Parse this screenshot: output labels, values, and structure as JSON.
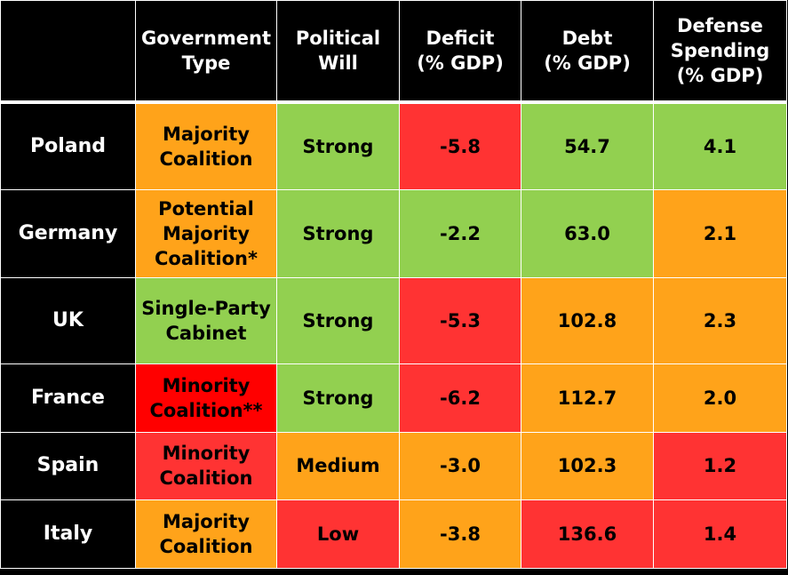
{
  "colors": {
    "green": "#92d050",
    "orange": "#ffa31a",
    "red": "#ff3333",
    "deep_red": "#ff0000",
    "header_bg": "#000000",
    "header_text": "#ffffff"
  },
  "headers": [
    "",
    "Government\nType",
    "Political\nWill",
    "Deficit\n(% GDP)",
    "Debt\n(% GDP)",
    "Defense\nSpending\n(% GDP)"
  ],
  "rows": [
    {
      "country": "Poland",
      "cells": [
        {
          "text": "Majority\nCoalition",
          "color": "orange"
        },
        {
          "text": "Strong",
          "color": "green"
        },
        {
          "text": "-5.8",
          "color": "red"
        },
        {
          "text": "54.7",
          "color": "green"
        },
        {
          "text": "4.1",
          "color": "green"
        }
      ]
    },
    {
      "country": "Germany",
      "cells": [
        {
          "text": "Potential\nMajority\nCoalition*",
          "color": "orange"
        },
        {
          "text": "Strong",
          "color": "green"
        },
        {
          "text": "-2.2",
          "color": "green"
        },
        {
          "text": "63.0",
          "color": "green"
        },
        {
          "text": "2.1",
          "color": "orange"
        }
      ]
    },
    {
      "country": "UK",
      "cells": [
        {
          "text": "Single-Party\nCabinet",
          "color": "green"
        },
        {
          "text": "Strong",
          "color": "green"
        },
        {
          "text": "-5.3",
          "color": "red"
        },
        {
          "text": "102.8",
          "color": "orange"
        },
        {
          "text": "2.3",
          "color": "orange"
        }
      ]
    },
    {
      "country": "France",
      "cells": [
        {
          "text": "Minority\nCoalition**",
          "color": "deep_red"
        },
        {
          "text": "Strong",
          "color": "green"
        },
        {
          "text": "-6.2",
          "color": "red"
        },
        {
          "text": "112.7",
          "color": "orange"
        },
        {
          "text": "2.0",
          "color": "orange"
        }
      ]
    },
    {
      "country": "Spain",
      "cells": [
        {
          "text": "Minority\nCoalition",
          "color": "red"
        },
        {
          "text": "Medium",
          "color": "orange"
        },
        {
          "text": "-3.0",
          "color": "orange"
        },
        {
          "text": "102.3",
          "color": "orange"
        },
        {
          "text": "1.2",
          "color": "red"
        }
      ]
    },
    {
      "country": "Italy",
      "cells": [
        {
          "text": "Majority\nCoalition",
          "color": "orange"
        },
        {
          "text": "Low",
          "color": "red"
        },
        {
          "text": "-3.8",
          "color": "orange"
        },
        {
          "text": "136.6",
          "color": "red"
        },
        {
          "text": "1.4",
          "color": "red"
        }
      ]
    }
  ]
}
